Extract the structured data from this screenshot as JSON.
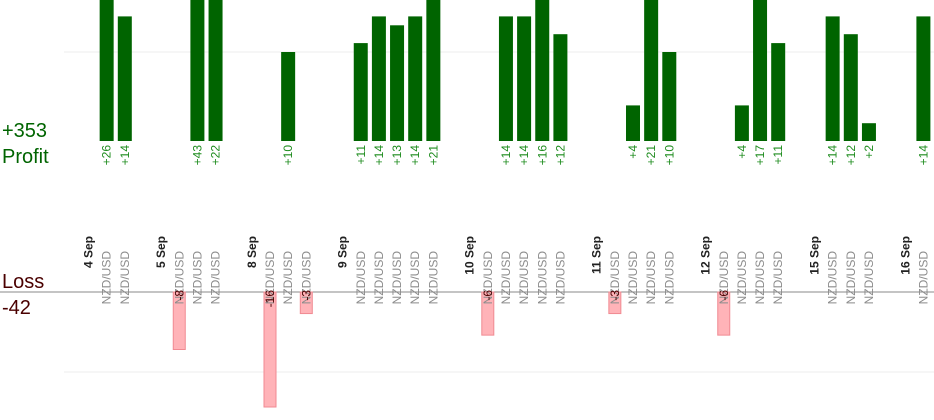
{
  "summary": {
    "profit_total": "+353",
    "profit_label": "Profit",
    "loss_label": "Loss",
    "loss_total": "-42"
  },
  "colors": {
    "profit": "#006400",
    "profit_text": "#1e8c1e",
    "loss_fill": "#ffb3b8",
    "loss_stroke": "#f08a92",
    "loss_text": "#4a0000",
    "axis": "#888888",
    "grid": "#eeeeee"
  },
  "chart_data": {
    "type": "bar",
    "title": "",
    "profit_ylim": [
      0,
      26
    ],
    "loss_ylim": [
      0,
      16
    ],
    "slots": [
      {
        "kind": "date",
        "label": "4 Sep"
      },
      {
        "kind": "trade",
        "pair": "NZD/USD",
        "value": 26
      },
      {
        "kind": "trade",
        "pair": "NZD/USD",
        "value": 14
      },
      {
        "kind": "gap"
      },
      {
        "kind": "date",
        "label": "5 Sep"
      },
      {
        "kind": "trade",
        "pair": "NZD/USD",
        "value": -8
      },
      {
        "kind": "trade",
        "pair": "NZD/USD",
        "value": 43
      },
      {
        "kind": "trade",
        "pair": "NZD/USD",
        "value": 22
      },
      {
        "kind": "gap"
      },
      {
        "kind": "date",
        "label": "8 Sep"
      },
      {
        "kind": "trade",
        "pair": "NZD/USD",
        "value": -16
      },
      {
        "kind": "trade",
        "pair": "NZD/USD",
        "value": 10
      },
      {
        "kind": "trade",
        "pair": "NZD/USD",
        "value": -3
      },
      {
        "kind": "gap"
      },
      {
        "kind": "date",
        "label": "9 Sep"
      },
      {
        "kind": "trade",
        "pair": "NZD/USD",
        "value": 11
      },
      {
        "kind": "trade",
        "pair": "NZD/USD",
        "value": 14
      },
      {
        "kind": "trade",
        "pair": "NZD/USD",
        "value": 13
      },
      {
        "kind": "trade",
        "pair": "NZD/USD",
        "value": 14
      },
      {
        "kind": "trade",
        "pair": "NZD/USD",
        "value": 21
      },
      {
        "kind": "gap"
      },
      {
        "kind": "date",
        "label": "10 Sep"
      },
      {
        "kind": "trade",
        "pair": "NZD/USD",
        "value": -6
      },
      {
        "kind": "trade",
        "pair": "NZD/USD",
        "value": 14
      },
      {
        "kind": "trade",
        "pair": "NZD/USD",
        "value": 14
      },
      {
        "kind": "trade",
        "pair": "NZD/USD",
        "value": 16
      },
      {
        "kind": "trade",
        "pair": "NZD/USD",
        "value": 12
      },
      {
        "kind": "gap"
      },
      {
        "kind": "date",
        "label": "11 Sep"
      },
      {
        "kind": "trade",
        "pair": "NZD/USD",
        "value": -3
      },
      {
        "kind": "trade",
        "pair": "NZD/USD",
        "value": 4
      },
      {
        "kind": "trade",
        "pair": "NZD/USD",
        "value": 21
      },
      {
        "kind": "trade",
        "pair": "NZD/USD",
        "value": 10
      },
      {
        "kind": "gap"
      },
      {
        "kind": "date",
        "label": "12 Sep"
      },
      {
        "kind": "trade",
        "pair": "NZD/USD",
        "value": -6
      },
      {
        "kind": "trade",
        "pair": "NZD/USD",
        "value": 4
      },
      {
        "kind": "trade",
        "pair": "NZD/USD",
        "value": 17
      },
      {
        "kind": "trade",
        "pair": "NZD/USD",
        "value": 11
      },
      {
        "kind": "gap"
      },
      {
        "kind": "date",
        "label": "15 Sep"
      },
      {
        "kind": "trade",
        "pair": "NZD/USD",
        "value": 14
      },
      {
        "kind": "trade",
        "pair": "NZD/USD",
        "value": 12
      },
      {
        "kind": "trade",
        "pair": "NZD/USD",
        "value": 2
      },
      {
        "kind": "gap"
      },
      {
        "kind": "date",
        "label": "16 Sep"
      },
      {
        "kind": "trade",
        "pair": "NZD/USD",
        "value": 14
      }
    ]
  }
}
